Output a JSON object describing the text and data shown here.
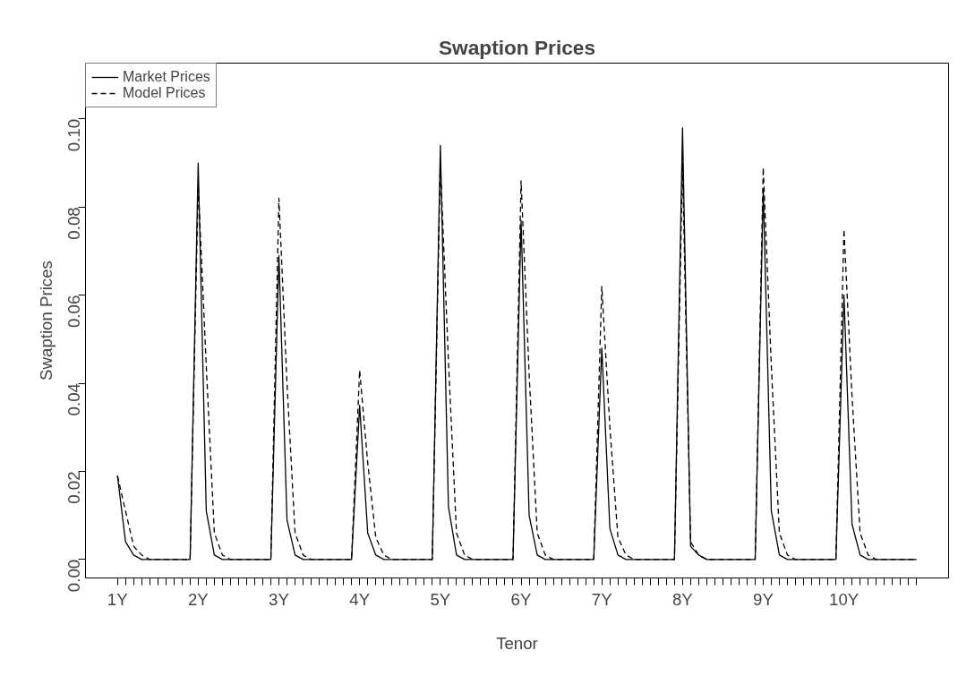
{
  "chart_data": {
    "type": "line",
    "title": "Swaption Prices",
    "xlabel": "Tenor",
    "ylabel": "Swaption Prices",
    "categories": [
      "1Y",
      null,
      null,
      null,
      null,
      null,
      null,
      null,
      null,
      null,
      "2Y",
      null,
      null,
      null,
      null,
      null,
      null,
      null,
      null,
      null,
      "3Y",
      null,
      null,
      null,
      null,
      null,
      null,
      null,
      null,
      null,
      "4Y",
      null,
      null,
      null,
      null,
      null,
      null,
      null,
      null,
      null,
      "5Y",
      null,
      null,
      null,
      null,
      null,
      null,
      null,
      null,
      null,
      "6Y",
      null,
      null,
      null,
      null,
      null,
      null,
      null,
      null,
      null,
      "7Y",
      null,
      null,
      null,
      null,
      null,
      null,
      null,
      null,
      null,
      "8Y",
      null,
      null,
      null,
      null,
      null,
      null,
      null,
      null,
      null,
      "9Y",
      null,
      null,
      null,
      null,
      null,
      null,
      null,
      null,
      null,
      "10Y",
      null,
      null,
      null,
      null,
      null,
      null,
      null,
      null,
      null
    ],
    "series": [
      {
        "name": "Market Prices",
        "color": "#000000",
        "line_style": "solid",
        "values": [
          0.019,
          0.004,
          0.001,
          0,
          0,
          0,
          0,
          0,
          0,
          0,
          0.09,
          0.011,
          0.001,
          0,
          0,
          0,
          0,
          0,
          0,
          0,
          0.069,
          0.009,
          0.001,
          0,
          0,
          0,
          0,
          0,
          0,
          0,
          0.035,
          0.006,
          0.001,
          0,
          0,
          0,
          0,
          0,
          0,
          0,
          0.094,
          0.012,
          0.001,
          0,
          0,
          0,
          0,
          0,
          0,
          0,
          0.077,
          0.01,
          0.001,
          0,
          0,
          0,
          0,
          0,
          0,
          0,
          0.048,
          0.007,
          0.001,
          0,
          0,
          0,
          0,
          0,
          0,
          0,
          0.098,
          0.003,
          0.001,
          0,
          0,
          0,
          0,
          0,
          0,
          0,
          0.084,
          0.011,
          0.001,
          0,
          0,
          0,
          0,
          0,
          0,
          0,
          0.06,
          0.008,
          0.001,
          0,
          0,
          0,
          0,
          0,
          0,
          0
        ]
      },
      {
        "name": "Model Prices",
        "color": "#000000",
        "line_style": "dashed",
        "values": [
          0.019,
          0.011,
          0.003,
          0.001,
          0,
          0,
          0,
          0,
          0,
          0,
          0.085,
          0.044,
          0.006,
          0.001,
          0,
          0,
          0,
          0,
          0,
          0,
          0.082,
          0.04,
          0.006,
          0.001,
          0,
          0,
          0,
          0,
          0,
          0,
          0.043,
          0.022,
          0.005,
          0.001,
          0,
          0,
          0,
          0,
          0,
          0,
          0.09,
          0.045,
          0.006,
          0.001,
          0,
          0,
          0,
          0,
          0,
          0,
          0.086,
          0.042,
          0.006,
          0.001,
          0,
          0,
          0,
          0,
          0,
          0,
          0.062,
          0.03,
          0.005,
          0.001,
          0,
          0,
          0,
          0,
          0,
          0,
          0.09,
          0.004,
          0.001,
          0,
          0,
          0,
          0,
          0,
          0,
          0,
          0.089,
          0.044,
          0.006,
          0.001,
          0,
          0,
          0,
          0,
          0,
          0,
          0.075,
          0.037,
          0.006,
          0.001,
          0,
          0,
          0,
          0,
          0,
          0
        ]
      }
    ],
    "ylim": [
      -0.0042,
      0.1127
    ],
    "yticks": [
      {
        "value": 0,
        "label": "0.00"
      },
      {
        "value": 0.02,
        "label": "0.02"
      },
      {
        "value": 0.04,
        "label": "0.04"
      },
      {
        "value": 0.06,
        "label": "0.06"
      },
      {
        "value": 0.08,
        "label": "0.08"
      },
      {
        "value": 0.1,
        "label": "0.10"
      }
    ],
    "grid": false,
    "legend": "top left"
  }
}
